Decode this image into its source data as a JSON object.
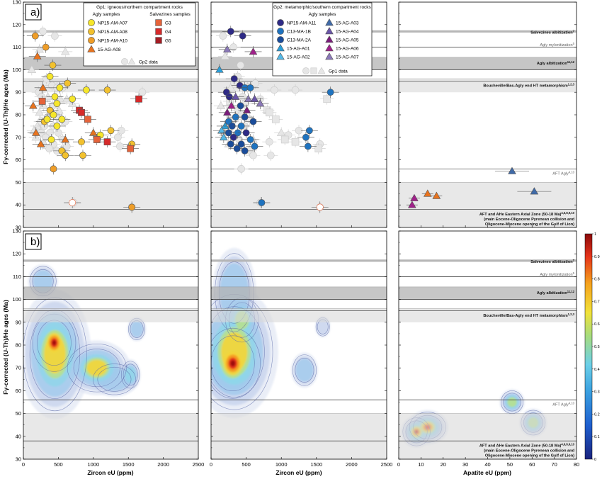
{
  "chart_data": {
    "type": "scatter",
    "panel_labels": [
      "a)",
      "b)"
    ],
    "y_axis": {
      "label": "Fγ-corrected (U-Th)/He ages (Ma)",
      "ylim": [
        30,
        130
      ],
      "ticks": [
        30,
        40,
        50,
        60,
        70,
        80,
        90,
        100,
        110,
        120,
        130
      ]
    },
    "x_axes": [
      {
        "label": "Zircon eU (ppm)",
        "xlim": [
          0,
          2500
        ],
        "ticks": [
          0,
          500,
          1000,
          1500,
          2000,
          2500
        ]
      },
      {
        "label": "Zircon eU (ppm)",
        "xlim": [
          0,
          2500
        ],
        "ticks": [
          0,
          500,
          1000,
          1500,
          2000,
          2500
        ]
      },
      {
        "label": "Apatite eU (ppm)",
        "xlim": [
          0,
          80
        ],
        "ticks": [
          0,
          10,
          20,
          30,
          40,
          50,
          60,
          70,
          80
        ]
      }
    ],
    "events": [
      {
        "label": "Salvezines albitization",
        "sup": "7",
        "y": [
          116.5,
          117.5
        ],
        "kind": "dark"
      },
      {
        "label": "Agly mylonitization",
        "sup": "5",
        "y": [
          110,
          110
        ],
        "kind": "line"
      },
      {
        "label": "Agly albitization",
        "sup": "11,12",
        "y": [
          100,
          105.5
        ],
        "kind": "dark",
        "midline": 100
      },
      {
        "label": "Boucheville/Bas-Agly end HT metamorphism",
        "sup": "1,2,3",
        "y": [
          90,
          96
        ],
        "kind": "light",
        "midline": 95
      },
      {
        "label": "AFT Agly",
        "sup": "4,10",
        "y": [
          56,
          56
        ],
        "kind": "line"
      },
      {
        "label": "AFT and AHe Eastern Axial Zone (50-18 Ma)",
        "sup": "4,6,8,9,10",
        "y": [
          30,
          50
        ],
        "kind": "light",
        "midline": 38,
        "lines": [
          "(main Eocene-Oligocene Pyrenean collision and",
          "Oligocene-Miocene opening of the Gulf of Lion)"
        ]
      }
    ],
    "legend_gp1": {
      "title": "Gp1: igneous/northern compartment rocks",
      "agly_title": "Agly samples",
      "salv_title": "Salvezines samples",
      "agly": [
        {
          "name": "NP15-AM-A07",
          "color": "#f6e62a",
          "shape": "circle"
        },
        {
          "name": "NP15-AM-A08",
          "color": "#f2c12e",
          "shape": "circle"
        },
        {
          "name": "NP15-AM-A10",
          "color": "#ee9d28",
          "shape": "circle"
        },
        {
          "name": "15-AG-A08",
          "color": "#e8731e",
          "shape": "triangle"
        }
      ],
      "salv": [
        {
          "name": "G3",
          "color": "#e5633a",
          "shape": "square"
        },
        {
          "name": "G4",
          "color": "#d62a2a",
          "shape": "square"
        },
        {
          "name": "G5",
          "color": "#a51d24",
          "shape": "square"
        }
      ],
      "other": "Gp2 data"
    },
    "legend_gp2": {
      "title": "Gp2: metamorphic/southern compartment rocks",
      "agly_title": "Agly samples",
      "col1": [
        {
          "name": "NP15-AM-A11",
          "color": "#2e2a86",
          "shape": "circle"
        },
        {
          "name": "C13-MA-1B",
          "color": "#1f73bf",
          "shape": "circle"
        },
        {
          "name": "C13-MA-2A",
          "color": "#1a4c9a",
          "shape": "circle"
        },
        {
          "name": "15-AG-A01",
          "color": "#2a9fd9",
          "shape": "triangle"
        },
        {
          "name": "15-AG-A02",
          "color": "#53b8e6",
          "shape": "triangle"
        }
      ],
      "col2": [
        {
          "name": "15-AG-A03",
          "color": "#3f6aa8",
          "shape": "triangle"
        },
        {
          "name": "15-AG-A04",
          "color": "#6a55a8",
          "shape": "triangle"
        },
        {
          "name": "15-AG-A05",
          "color": "#7a1c7a",
          "shape": "triangle"
        },
        {
          "name": "15-AG-A06",
          "color": "#a0208a",
          "shape": "triangle"
        },
        {
          "name": "15-AG-A07",
          "color": "#8a78b8",
          "shape": "triangle"
        }
      ],
      "other": "Gp1 data"
    },
    "colorbar": {
      "min": 0,
      "max": 1,
      "ticks": [
        0,
        0.1,
        0.2,
        0.3,
        0.4,
        0.5,
        0.6,
        0.7,
        0.8,
        0.9,
        1
      ]
    },
    "panel_a": {
      "gp1": [
        {
          "x": 170,
          "y": 115,
          "c": "#ee9d28",
          "s": "circle"
        },
        {
          "x": 320,
          "y": 110,
          "c": "#ee9d28",
          "s": "circle"
        },
        {
          "x": 200,
          "y": 106,
          "c": "#e8731e",
          "s": "triangle"
        },
        {
          "x": 420,
          "y": 102,
          "c": "#f2c12e",
          "s": "circle"
        },
        {
          "x": 380,
          "y": 97,
          "c": "#f6e62a",
          "s": "circle"
        },
        {
          "x": 520,
          "y": 92,
          "c": "#f6e62a",
          "s": "circle"
        },
        {
          "x": 630,
          "y": 94,
          "c": "#f2c12e",
          "s": "circle"
        },
        {
          "x": 900,
          "y": 91,
          "c": "#f6e62a",
          "s": "circle"
        },
        {
          "x": 1200,
          "y": 91,
          "c": "#f2c12e",
          "s": "circle"
        },
        {
          "x": 280,
          "y": 92,
          "c": "#e8731e",
          "s": "triangle"
        },
        {
          "x": 450,
          "y": 88,
          "c": "#f6e62a",
          "s": "circle"
        },
        {
          "x": 700,
          "y": 87,
          "c": "#f6e62a",
          "s": "circle"
        },
        {
          "x": 270,
          "y": 86,
          "c": "#e5633a",
          "s": "square"
        },
        {
          "x": 140,
          "y": 84,
          "c": "#e8731e",
          "s": "triangle"
        },
        {
          "x": 480,
          "y": 85,
          "c": "#f6e62a",
          "s": "circle"
        },
        {
          "x": 380,
          "y": 82,
          "c": "#f2c12e",
          "s": "circle"
        },
        {
          "x": 430,
          "y": 80,
          "c": "#f6e62a",
          "s": "circle"
        },
        {
          "x": 800,
          "y": 82,
          "c": "#d62a2a",
          "s": "square"
        },
        {
          "x": 830,
          "y": 81,
          "c": "#d62a2a",
          "s": "square"
        },
        {
          "x": 1650,
          "y": 87,
          "c": "#d62a2a",
          "s": "square"
        },
        {
          "x": 300,
          "y": 77,
          "c": "#f2c12e",
          "s": "circle"
        },
        {
          "x": 340,
          "y": 78,
          "c": "#f6e62a",
          "s": "circle"
        },
        {
          "x": 550,
          "y": 78,
          "c": "#f6e62a",
          "s": "circle"
        },
        {
          "x": 920,
          "y": 78,
          "c": "#e5633a",
          "s": "square"
        },
        {
          "x": 480,
          "y": 75,
          "c": "#f6e62a",
          "s": "circle"
        },
        {
          "x": 180,
          "y": 72,
          "c": "#e8731e",
          "s": "triangle"
        },
        {
          "x": 1000,
          "y": 72,
          "c": "#e8731e",
          "s": "triangle"
        },
        {
          "x": 1100,
          "y": 71,
          "c": "#f6e62a",
          "s": "circle"
        },
        {
          "x": 1250,
          "y": 73,
          "c": "#f2c12e",
          "s": "circle"
        },
        {
          "x": 600,
          "y": 69,
          "c": "#e8731e",
          "s": "triangle"
        },
        {
          "x": 400,
          "y": 69,
          "c": "#f6e62a",
          "s": "circle"
        },
        {
          "x": 1050,
          "y": 69,
          "c": "#e5633a",
          "s": "square"
        },
        {
          "x": 1200,
          "y": 68,
          "c": "#d62a2a",
          "s": "square"
        },
        {
          "x": 830,
          "y": 68,
          "c": "#f2c12e",
          "s": "circle"
        },
        {
          "x": 250,
          "y": 67,
          "c": "#e8731e",
          "s": "triangle"
        },
        {
          "x": 1550,
          "y": 67,
          "c": "#f2c12e",
          "s": "circle"
        },
        {
          "x": 1530,
          "y": 65,
          "c": "#e5633a",
          "s": "square"
        },
        {
          "x": 550,
          "y": 64,
          "c": "#f2c12e",
          "s": "circle"
        },
        {
          "x": 600,
          "y": 62,
          "c": "#f2c12e",
          "s": "circle"
        },
        {
          "x": 850,
          "y": 62,
          "c": "#f2c12e",
          "s": "circle"
        },
        {
          "x": 430,
          "y": 56,
          "c": "#ee9d28",
          "s": "circle"
        },
        {
          "x": 1550,
          "y": 39,
          "c": "#ee9d28",
          "s": "circle"
        },
        {
          "x": 700,
          "y": 41,
          "c": "#ffffff",
          "s": "circle",
          "stroke": "#e5633a"
        }
      ],
      "gp2": [
        {
          "x": 280,
          "y": 117,
          "c": "#2e2a86",
          "s": "circle"
        },
        {
          "x": 450,
          "y": 115,
          "c": "#2e2a86",
          "s": "circle"
        },
        {
          "x": 600,
          "y": 108,
          "c": "#a0208a",
          "s": "triangle"
        },
        {
          "x": 230,
          "y": 109,
          "c": "#8a78b8",
          "s": "triangle"
        },
        {
          "x": 120,
          "y": 100,
          "c": "#2a9fd9",
          "s": "triangle"
        },
        {
          "x": 330,
          "y": 96,
          "c": "#2e2a86",
          "s": "circle"
        },
        {
          "x": 410,
          "y": 93,
          "c": "#2e2a86",
          "s": "circle"
        },
        {
          "x": 480,
          "y": 92,
          "c": "#1f73bf",
          "s": "circle"
        },
        {
          "x": 560,
          "y": 92,
          "c": "#1f73bf",
          "s": "circle"
        },
        {
          "x": 1700,
          "y": 90,
          "c": "#1f73bf",
          "s": "circle"
        },
        {
          "x": 220,
          "y": 90,
          "c": "#2e2a86",
          "s": "circle"
        },
        {
          "x": 260,
          "y": 88,
          "c": "#2e2a86",
          "s": "circle"
        },
        {
          "x": 350,
          "y": 88,
          "c": "#6a55a8",
          "s": "triangle"
        },
        {
          "x": 530,
          "y": 87,
          "c": "#8a78b8",
          "s": "triangle"
        },
        {
          "x": 620,
          "y": 87,
          "c": "#6a55a8",
          "s": "triangle"
        },
        {
          "x": 700,
          "y": 85,
          "c": "#8a78b8",
          "s": "triangle"
        },
        {
          "x": 290,
          "y": 84,
          "c": "#a0208a",
          "s": "triangle"
        },
        {
          "x": 420,
          "y": 84,
          "c": "#1a4c9a",
          "s": "circle"
        },
        {
          "x": 510,
          "y": 82,
          "c": "#7a1c7a",
          "s": "triangle"
        },
        {
          "x": 230,
          "y": 81,
          "c": "#7a1c7a",
          "s": "triangle"
        },
        {
          "x": 350,
          "y": 79,
          "c": "#1f73bf",
          "s": "circle"
        },
        {
          "x": 480,
          "y": 79,
          "c": "#1a4c9a",
          "s": "circle"
        },
        {
          "x": 250,
          "y": 77,
          "c": "#1f73bf",
          "s": "circle"
        },
        {
          "x": 600,
          "y": 77,
          "c": "#1a4c9a",
          "s": "circle"
        },
        {
          "x": 200,
          "y": 75,
          "c": "#2a9fd9",
          "s": "triangle"
        },
        {
          "x": 300,
          "y": 75,
          "c": "#1a4c9a",
          "s": "circle"
        },
        {
          "x": 430,
          "y": 75,
          "c": "#1f73bf",
          "s": "circle"
        },
        {
          "x": 150,
          "y": 73,
          "c": "#53b8e6",
          "s": "triangle"
        },
        {
          "x": 250,
          "y": 72,
          "c": "#1a4c9a",
          "s": "circle"
        },
        {
          "x": 380,
          "y": 72,
          "c": "#1f73bf",
          "s": "circle"
        },
        {
          "x": 500,
          "y": 72,
          "c": "#2e2a86",
          "s": "circle"
        },
        {
          "x": 1400,
          "y": 73,
          "c": "#1f73bf",
          "s": "circle"
        },
        {
          "x": 1350,
          "y": 70,
          "c": "#1f73bf",
          "s": "circle"
        },
        {
          "x": 180,
          "y": 70,
          "c": "#53b8e6",
          "s": "triangle"
        },
        {
          "x": 320,
          "y": 70,
          "c": "#2e2a86",
          "s": "circle"
        },
        {
          "x": 560,
          "y": 69,
          "c": "#1f73bf",
          "s": "circle"
        },
        {
          "x": 280,
          "y": 67,
          "c": "#1a4c9a",
          "s": "circle"
        },
        {
          "x": 430,
          "y": 67,
          "c": "#1a4c9a",
          "s": "circle"
        },
        {
          "x": 620,
          "y": 66,
          "c": "#1f73bf",
          "s": "circle"
        },
        {
          "x": 1380,
          "y": 66,
          "c": "#1f73bf",
          "s": "circle"
        },
        {
          "x": 370,
          "y": 65,
          "c": "#1a4c9a",
          "s": "circle"
        },
        {
          "x": 480,
          "y": 64,
          "c": "#1a4c9a",
          "s": "circle"
        },
        {
          "x": 720,
          "y": 41,
          "c": "#1f73bf",
          "s": "circle"
        },
        {
          "x": 1550,
          "y": 39,
          "c": "#ffffff",
          "s": "circle",
          "stroke": "#e5633a"
        }
      ],
      "apatite": [
        {
          "x": 51,
          "y": 55,
          "c": "#3f6aa8",
          "s": "triangle"
        },
        {
          "x": 61,
          "y": 46,
          "c": "#3f6aa8",
          "s": "triangle"
        },
        {
          "x": 13,
          "y": 45,
          "c": "#e8731e",
          "s": "triangle"
        },
        {
          "x": 17,
          "y": 44,
          "c": "#e8731e",
          "s": "triangle"
        },
        {
          "x": 7,
          "y": 43,
          "c": "#a0208a",
          "s": "triangle"
        },
        {
          "x": 6,
          "y": 40,
          "c": "#a0208a",
          "s": "triangle"
        }
      ]
    },
    "panel_b": {
      "kde": [
        {
          "panel": 0,
          "x": 440,
          "y": 81,
          "sx": 110,
          "sy": 4.5,
          "w": 1
        },
        {
          "panel": 0,
          "x": 450,
          "y": 76,
          "sx": 220,
          "sy": 12,
          "w": 0.42
        },
        {
          "panel": 0,
          "x": 1050,
          "y": 70,
          "sx": 200,
          "sy": 5,
          "w": 0.45
        },
        {
          "panel": 0,
          "x": 1300,
          "y": 65,
          "sx": 180,
          "sy": 4,
          "w": 0.12
        },
        {
          "panel": 0,
          "x": 1530,
          "y": 67,
          "sx": 70,
          "sy": 3.2,
          "w": 0.25
        },
        {
          "panel": 0,
          "x": 1620,
          "y": 87,
          "sx": 70,
          "sy": 2.8,
          "w": 0.12
        },
        {
          "panel": 0,
          "x": 280,
          "y": 108,
          "sx": 110,
          "sy": 3.8,
          "w": 0.14
        },
        {
          "panel": 1,
          "x": 310,
          "y": 72,
          "sx": 140,
          "sy": 5.5,
          "w": 1
        },
        {
          "panel": 1,
          "x": 330,
          "y": 77,
          "sx": 260,
          "sy": 12,
          "w": 0.45
        },
        {
          "panel": 1,
          "x": 440,
          "y": 91,
          "sx": 120,
          "sy": 5,
          "w": 0.32
        },
        {
          "panel": 1,
          "x": 330,
          "y": 103,
          "sx": 160,
          "sy": 10,
          "w": 0.14
        },
        {
          "panel": 1,
          "x": 1330,
          "y": 69,
          "sx": 100,
          "sy": 4,
          "w": 0.12
        },
        {
          "panel": 1,
          "x": 1590,
          "y": 88,
          "sx": 60,
          "sy": 2.5,
          "w": 0.06
        },
        {
          "panel": 2,
          "x": 8,
          "y": 42,
          "sx": 2.2,
          "sy": 2.2,
          "w": 1
        },
        {
          "panel": 2,
          "x": 13,
          "y": 44,
          "sx": 3.2,
          "sy": 2.6,
          "w": 0.8
        },
        {
          "panel": 2,
          "x": 51,
          "y": 55,
          "sx": 2.6,
          "sy": 2.6,
          "w": 0.3
        },
        {
          "panel": 2,
          "x": 60.5,
          "y": 46,
          "sx": 2.8,
          "sy": 2.8,
          "w": 0.32
        }
      ]
    }
  }
}
